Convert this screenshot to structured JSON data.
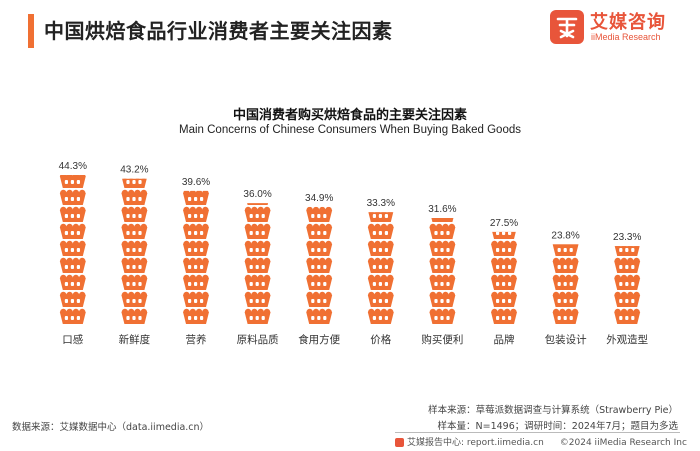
{
  "header": {
    "title": "中国烘焙食品行业消费者主要关注因素",
    "accent_color": "#f07033"
  },
  "logo": {
    "cn": "艾媒咨询",
    "en": "iiMedia Research",
    "color": "#e8553a"
  },
  "chart_data": {
    "type": "bar",
    "title": "中国消费者购买烘焙食品的主要关注因素",
    "subtitle": "Main Concerns of Chinese Consumers When Buying Baked Goods",
    "categories": [
      "口感",
      "新鲜度",
      "营养",
      "原料品质",
      "食用方便",
      "价格",
      "购买便利",
      "品牌",
      "包装设计",
      "外观造型"
    ],
    "values": [
      44.3,
      43.2,
      39.6,
      36.0,
      34.9,
      33.3,
      31.6,
      27.5,
      23.8,
      23.3
    ],
    "value_labels": [
      "44.3%",
      "43.2%",
      "39.6%",
      "36.0%",
      "34.9%",
      "33.3%",
      "31.6%",
      "27.5%",
      "23.8%",
      "23.3%"
    ],
    "unit": "%",
    "bar_color": "#f07033",
    "bar_style": "stacked cake icons"
  },
  "footer": {
    "data_source": "数据来源：艾媒数据中心（data.iimedia.cn）",
    "sample_source": "样本来源：草莓派数据调查与计算系统（Strawberry Pie）",
    "sample_info": "样本量：N=1496；调研时间：2024年7月；题目为多选",
    "report_site": "艾媒报告中心: report.iimedia.cn",
    "copyright": "©2024 iiMedia Research Inc"
  }
}
